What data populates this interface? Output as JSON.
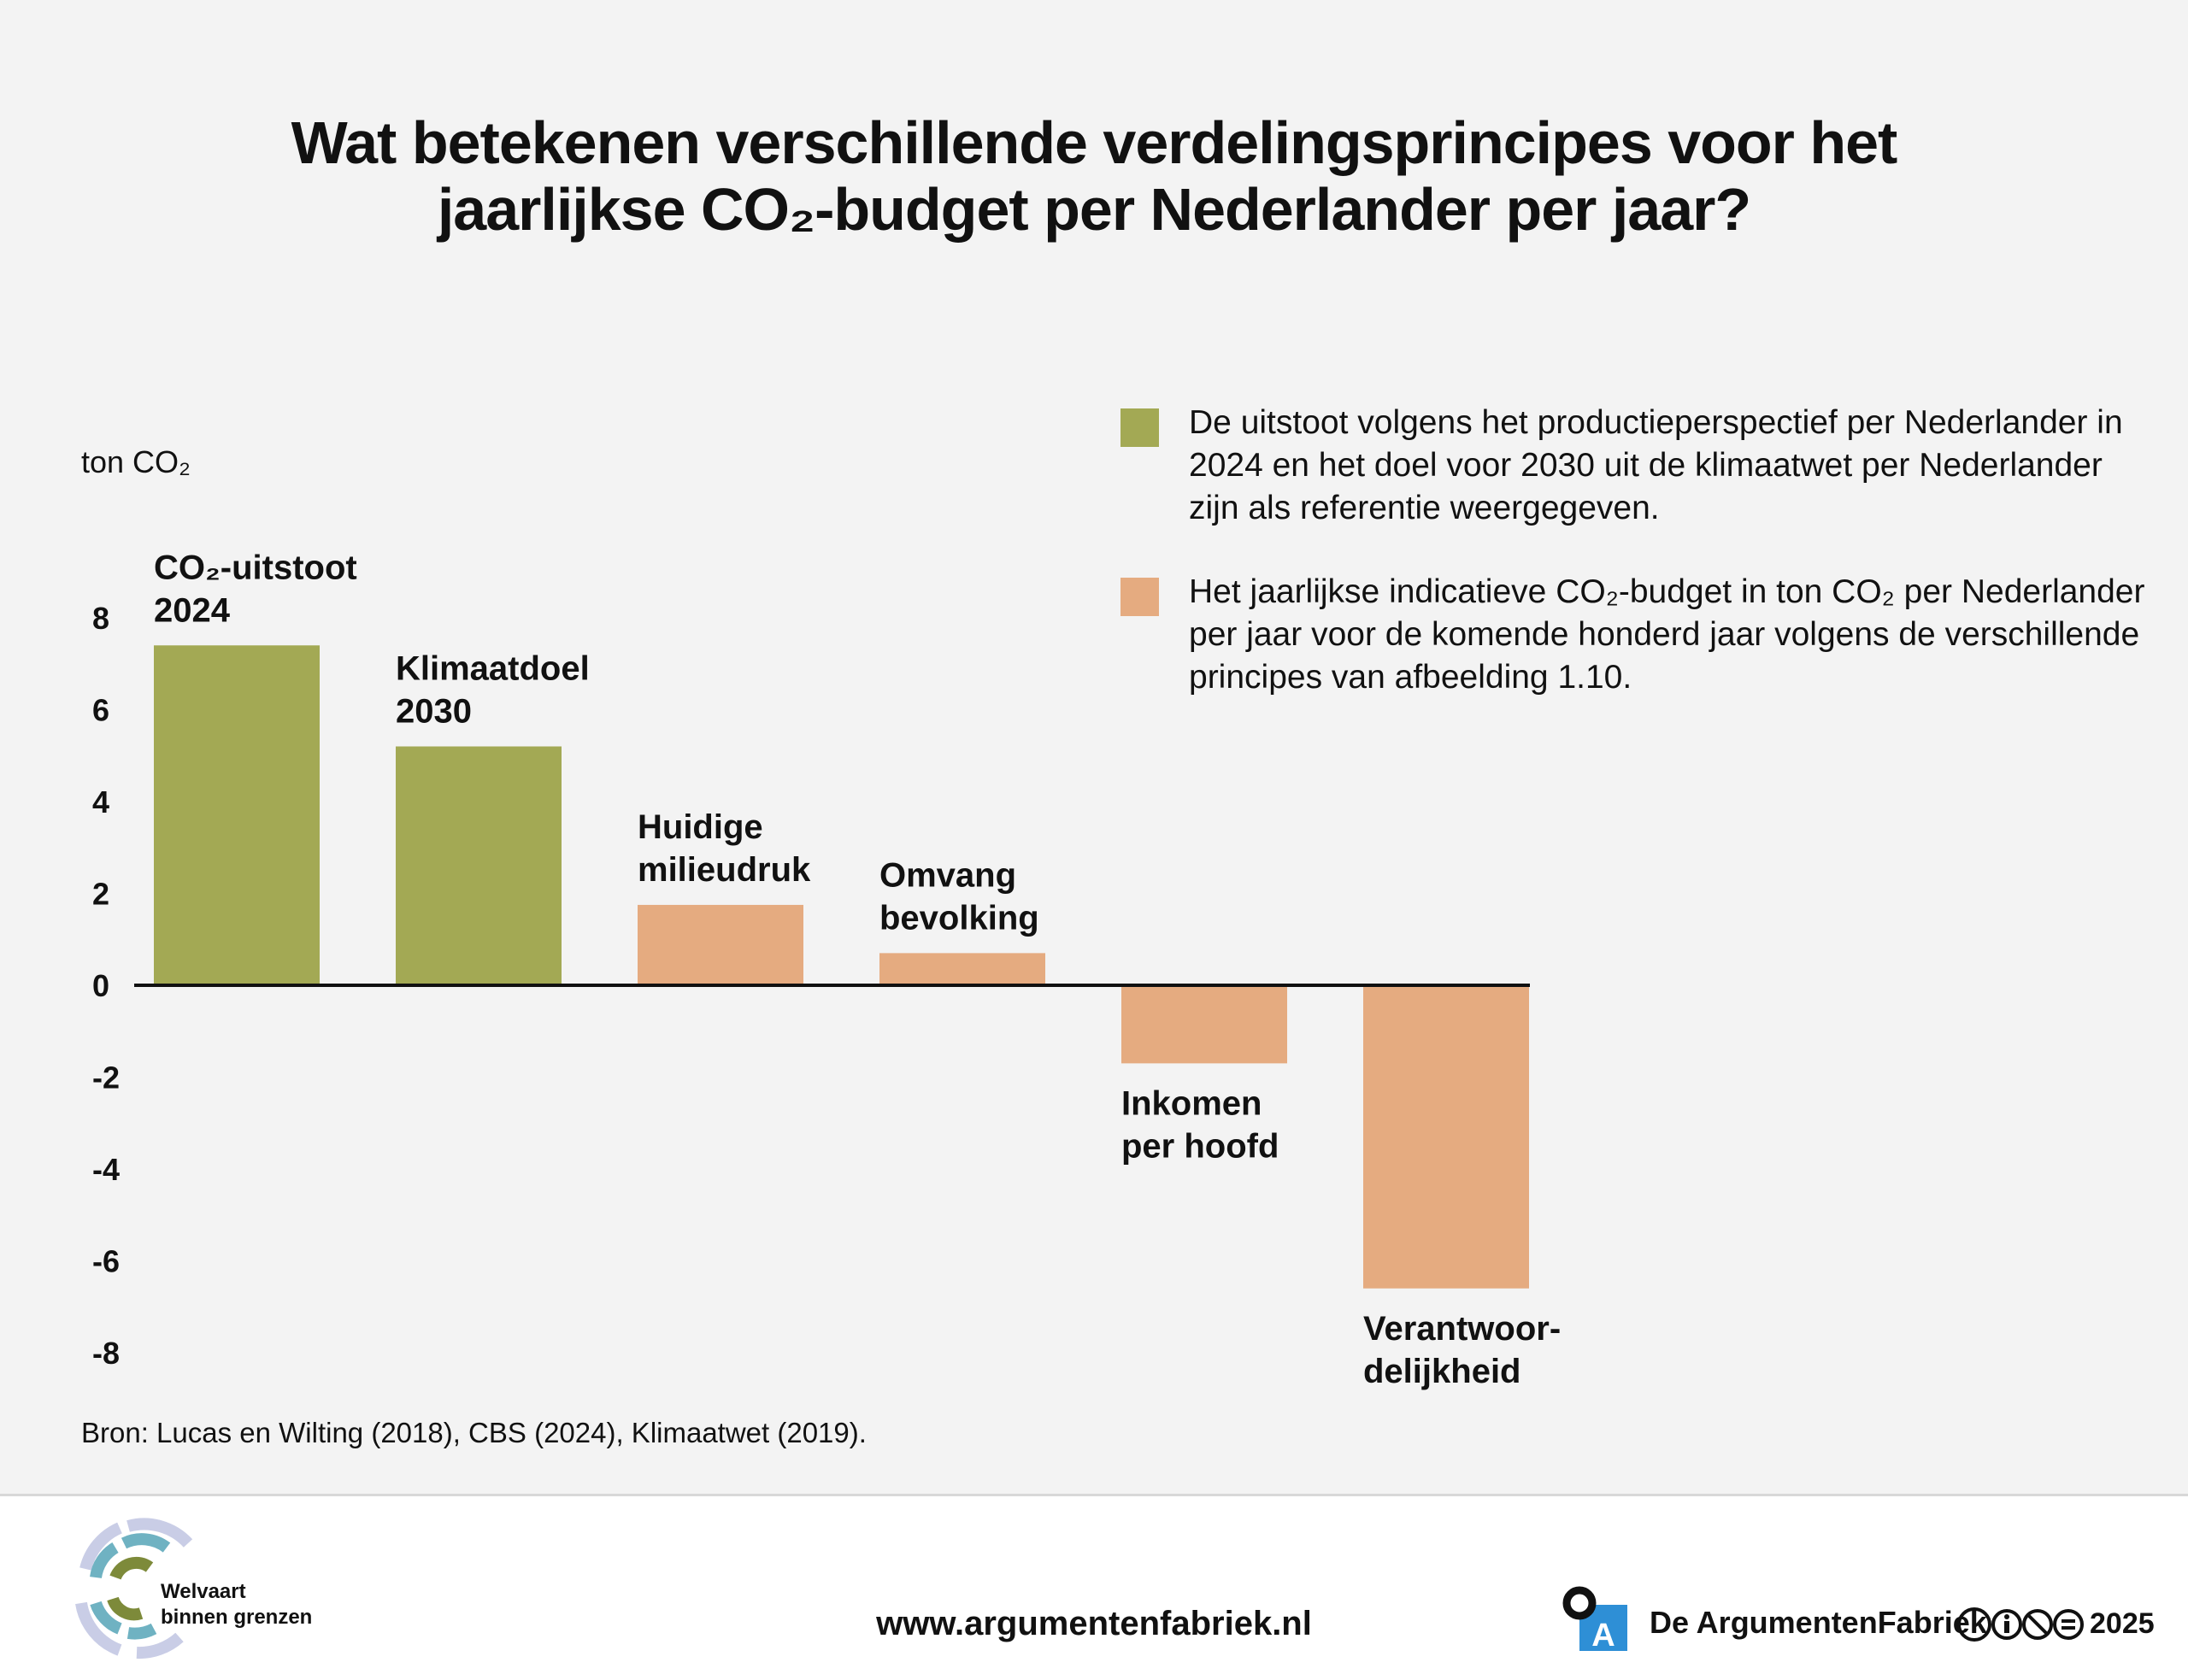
{
  "title": {
    "line1": "Wat betekenen verschillende verdelingsprincipes voor het",
    "line2": "jaarlijkse CO₂-budget per Nederlander per jaar?"
  },
  "chart_data": {
    "type": "bar",
    "ylabel": "ton CO₂",
    "ylim": [
      -8,
      8
    ],
    "yticks": [
      "8",
      "6",
      "4",
      "2",
      "0",
      "-2",
      "-4",
      "-6",
      "-8"
    ],
    "bars": [
      {
        "label_lines": [
          "CO₂-uitstoot",
          "2024"
        ],
        "value": 7.4,
        "series": "reference"
      },
      {
        "label_lines": [
          "Klimaatdoel",
          "2030"
        ],
        "value": 5.2,
        "series": "reference"
      },
      {
        "label_lines": [
          "Huidige",
          "milieudruk"
        ],
        "value": 1.75,
        "series": "budget"
      },
      {
        "label_lines": [
          "Omvang",
          "bevolking"
        ],
        "value": 0.7,
        "series": "budget"
      },
      {
        "label_lines": [
          "Inkomen",
          "per hoofd"
        ],
        "value": -1.7,
        "series": "budget"
      },
      {
        "label_lines": [
          "Verantwoor-",
          "delijkheid"
        ],
        "value": -6.6,
        "series": "budget"
      }
    ],
    "colors": {
      "reference": "#a3a954",
      "budget": "#e5ab80"
    }
  },
  "legend": [
    {
      "text": "De uitstoot volgens het productieperspectief per Nederlander in 2024 en het doel voor 2030 uit de klimaatwet per Nederlander zijn als referentie weergegeven.",
      "color": "#a3a954"
    },
    {
      "text": "Het jaarlijkse indicatieve CO₂-budget in ton CO₂ per Nederlander per jaar voor de komende honderd jaar volgens de verschillende principes van afbeelding 1.10.",
      "color": "#e5ab80"
    }
  ],
  "source": "Bron: Lucas en Wilting (2018), CBS (2024), Klimaatwet (2019).",
  "footer": {
    "logo_line1": "Welvaart",
    "logo_line2": "binnen grenzen",
    "website": "www.argumentenfabriek.nl",
    "brand": "De ArgumentenFabriek",
    "year": "2025"
  }
}
